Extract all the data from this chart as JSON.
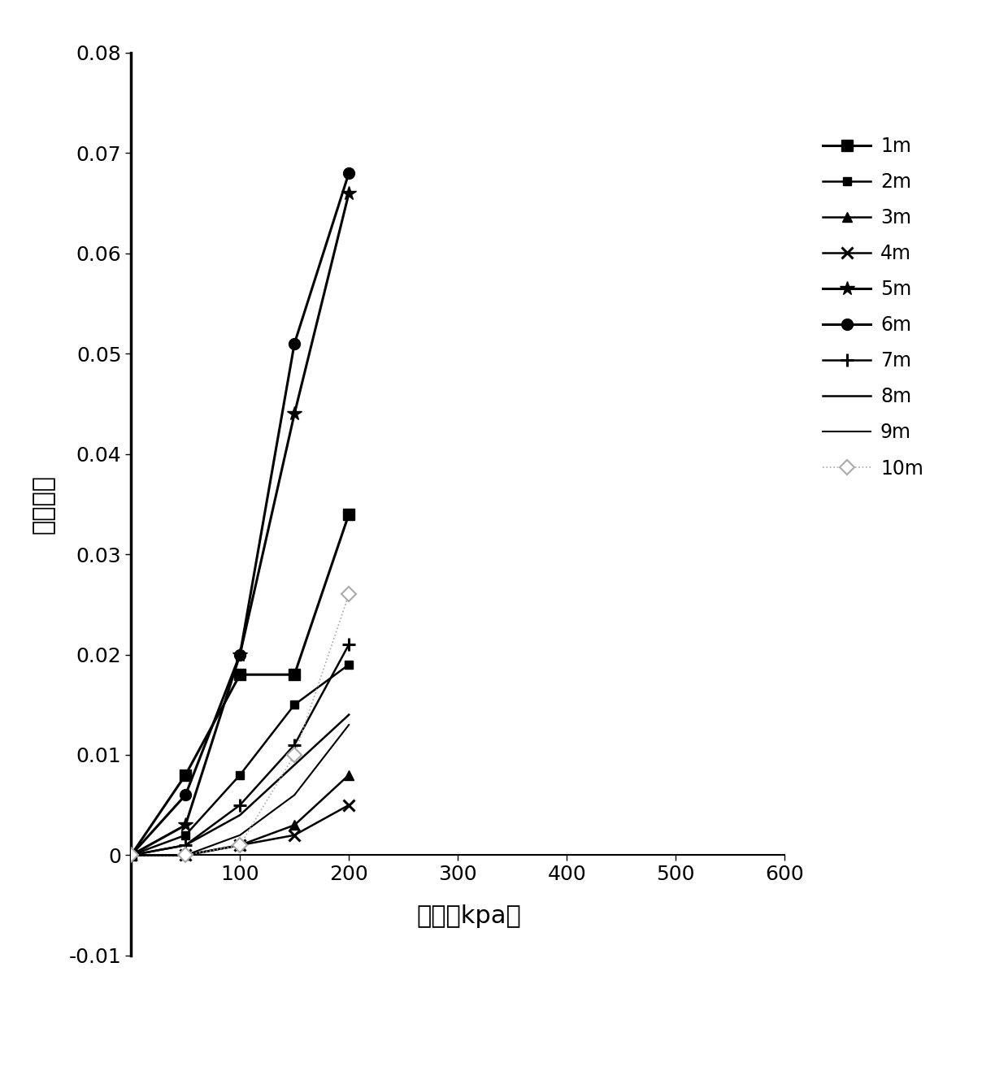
{
  "series": [
    {
      "label": "1m",
      "x": [
        0,
        50,
        100,
        150,
        200
      ],
      "y": [
        0,
        0.008,
        0.018,
        0.018,
        0.034
      ],
      "marker": "s",
      "markersize": 10,
      "color": "#000000",
      "linewidth": 2.2,
      "linestyle": "-",
      "open": false,
      "fillstyle": "full"
    },
    {
      "label": "2m",
      "x": [
        0,
        50,
        100,
        150,
        200
      ],
      "y": [
        0,
        0.002,
        0.008,
        0.015,
        0.019
      ],
      "marker": "s",
      "markersize": 7,
      "color": "#000000",
      "linewidth": 1.8,
      "linestyle": "-",
      "open": false,
      "fillstyle": "full"
    },
    {
      "label": "3m",
      "x": [
        0,
        50,
        100,
        150,
        200
      ],
      "y": [
        0,
        0.0,
        0.001,
        0.003,
        0.008
      ],
      "marker": "^",
      "markersize": 9,
      "color": "#000000",
      "linewidth": 1.8,
      "linestyle": "-",
      "open": false,
      "fillstyle": "full"
    },
    {
      "label": "4m",
      "x": [
        0,
        50,
        100,
        150,
        200
      ],
      "y": [
        0,
        0.0,
        0.001,
        0.002,
        0.005
      ],
      "marker": "x",
      "markersize": 10,
      "color": "#000000",
      "linewidth": 1.8,
      "linestyle": "-",
      "open": false,
      "fillstyle": "full"
    },
    {
      "label": "5m",
      "x": [
        0,
        50,
        100,
        150,
        200
      ],
      "y": [
        0,
        0.003,
        0.02,
        0.044,
        0.066
      ],
      "marker": "*",
      "markersize": 13,
      "color": "#000000",
      "linewidth": 2.2,
      "linestyle": "-",
      "open": false,
      "fillstyle": "full"
    },
    {
      "label": "6m",
      "x": [
        0,
        50,
        100,
        150,
        200
      ],
      "y": [
        0,
        0.006,
        0.02,
        0.051,
        0.068
      ],
      "marker": "o",
      "markersize": 10,
      "color": "#000000",
      "linewidth": 2.2,
      "linestyle": "-",
      "open": false,
      "fillstyle": "full"
    },
    {
      "label": "7m",
      "x": [
        0,
        50,
        100,
        150,
        200
      ],
      "y": [
        0,
        0.001,
        0.005,
        0.011,
        0.021
      ],
      "marker": "+",
      "markersize": 11,
      "color": "#000000",
      "linewidth": 1.8,
      "linestyle": "-",
      "open": false,
      "fillstyle": "full"
    },
    {
      "label": "8m",
      "x": [
        0,
        50,
        100,
        150,
        200
      ],
      "y": [
        0,
        0.001,
        0.004,
        0.009,
        0.014
      ],
      "marker": "None",
      "markersize": 0,
      "color": "#000000",
      "linewidth": 1.8,
      "linestyle": "-",
      "open": false,
      "fillstyle": "full"
    },
    {
      "label": "9m",
      "x": [
        0,
        50,
        100,
        150,
        200
      ],
      "y": [
        0,
        0.0,
        0.002,
        0.006,
        0.013
      ],
      "marker": "None",
      "markersize": 0,
      "color": "#000000",
      "linewidth": 1.5,
      "linestyle": "-",
      "open": false,
      "fillstyle": "full"
    },
    {
      "label": "10m",
      "x": [
        0,
        50,
        100,
        150,
        200
      ],
      "y": [
        0,
        0.0,
        0.001,
        0.01,
        0.026
      ],
      "marker": "D",
      "markersize": 9,
      "color": "#aaaaaa",
      "linewidth": 1.2,
      "linestyle": ":",
      "open": true,
      "fillstyle": "none"
    }
  ],
  "xlabel": "压力（kpa）",
  "ylabel": "湿陷系数",
  "xlim": [
    0,
    620
  ],
  "ylim": [
    -0.012,
    0.082
  ],
  "xticks": [
    0,
    100,
    200,
    300,
    400,
    500,
    600
  ],
  "yticks": [
    -0.01,
    0.0,
    0.01,
    0.02,
    0.03,
    0.04,
    0.05,
    0.06,
    0.07,
    0.08
  ],
  "background_color": "#ffffff",
  "xlabel_fontsize": 22,
  "ylabel_fontsize": 22,
  "tick_fontsize": 18,
  "legend_fontsize": 17
}
